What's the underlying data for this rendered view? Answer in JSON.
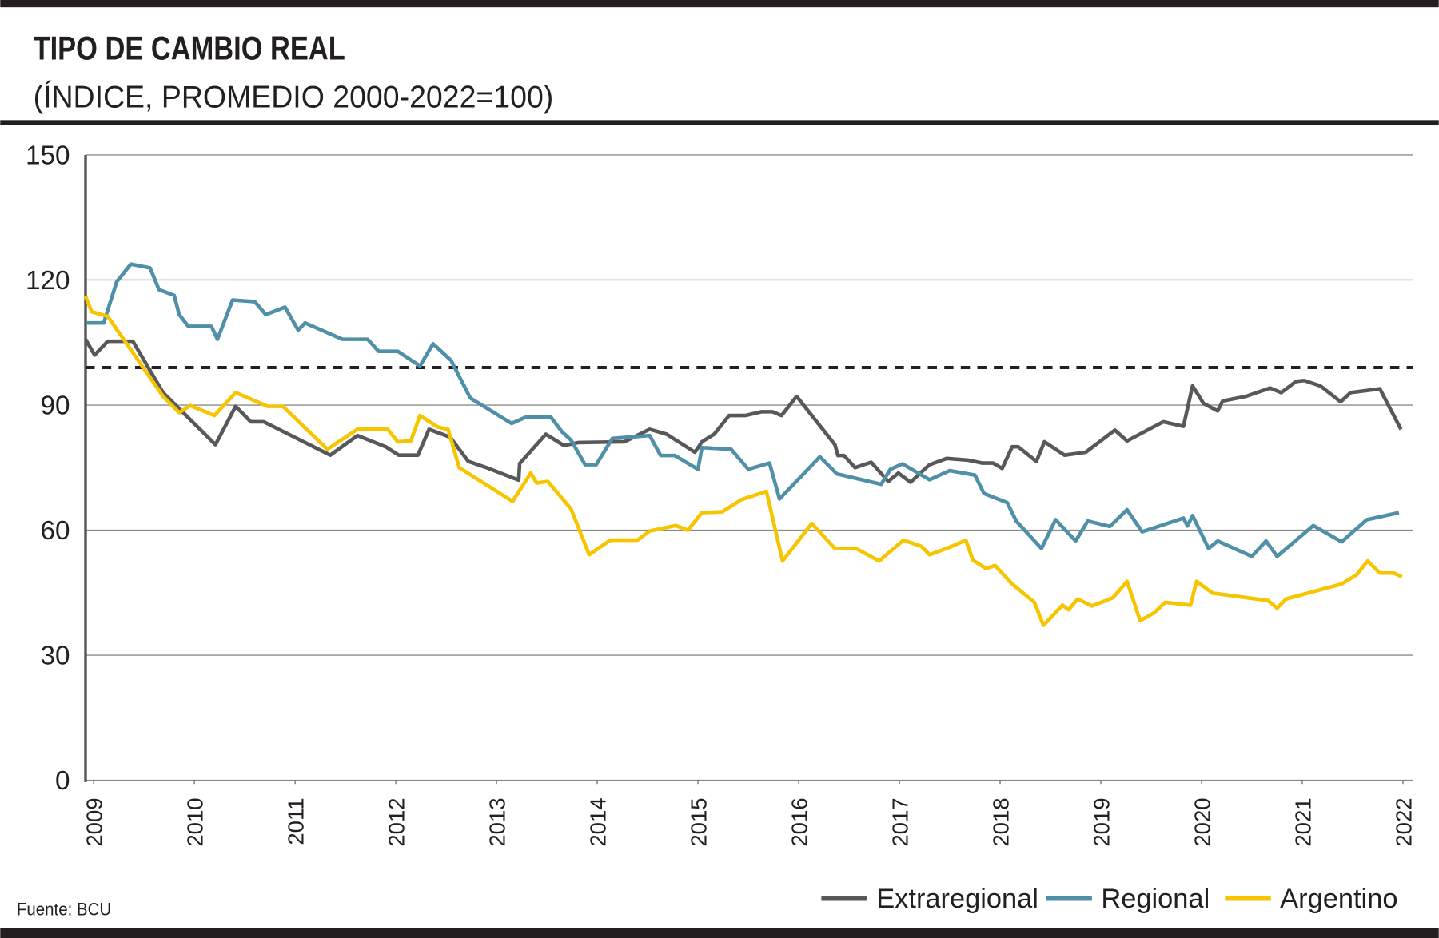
{
  "chart_data": {
    "type": "line",
    "title": "TIPO DE CAMBIO REAL",
    "subtitle": "(ÍNDICE, PROMEDIO 2000-2022=100)",
    "source": "Fuente: BCU",
    "xlim": [
      2008.92,
      2022.1
    ],
    "xticks": [
      2009,
      2010,
      2011,
      2012,
      2013,
      2014,
      2015,
      2016,
      2017,
      2018,
      2019,
      2020,
      2021,
      2022
    ],
    "ylim": [
      0,
      150
    ],
    "yticks": [
      0,
      30,
      60,
      90,
      120,
      150
    ],
    "grid": true,
    "reference_line": 99,
    "legend": "bottom-right",
    "series": [
      {
        "name": "Extraregional",
        "color": "#58585a",
        "x": [
          2008.92,
          2009.01,
          2009.14,
          2009.39,
          2009.69,
          2010.21,
          2010.41,
          2010.56,
          2010.69,
          2011.35,
          2011.62,
          2011.9,
          2012.03,
          2012.22,
          2012.33,
          2012.54,
          2012.72,
          2012.9,
          2013.22,
          2013.23,
          2013.49,
          2013.67,
          2013.81,
          2014.27,
          2014.52,
          2014.69,
          2014.97,
          2015.04,
          2015.16,
          2015.31,
          2015.47,
          2015.63,
          2015.74,
          2015.83,
          2015.98,
          2016.36,
          2016.39,
          2016.45,
          2016.56,
          2016.72,
          2016.89,
          2016.99,
          2017.11,
          2017.3,
          2017.47,
          2017.68,
          2017.82,
          2017.93,
          2018.02,
          2018.12,
          2018.18,
          2018.36,
          2018.44,
          2018.64,
          2018.85,
          2019.14,
          2019.26,
          2019.62,
          2019.82,
          2019.91,
          2020.02,
          2020.16,
          2020.21,
          2020.44,
          2020.68,
          2020.79,
          2020.94,
          2021.02,
          2021.18,
          2021.38,
          2021.48,
          2021.77,
          2021.98
        ],
        "values": [
          105.8,
          102,
          105.3,
          105.3,
          93,
          80.5,
          89.7,
          86,
          86,
          78,
          82.7,
          80,
          78,
          78,
          84.2,
          82.3,
          76.5,
          75,
          72,
          76,
          83,
          80.3,
          81,
          81.2,
          84.2,
          83,
          78.7,
          81.2,
          83,
          87.5,
          87.5,
          88.4,
          88.4,
          87.5,
          92.1,
          80.5,
          77.9,
          77.9,
          75,
          76.3,
          71.7,
          73.7,
          71.5,
          75.7,
          77.2,
          76.8,
          76.1,
          76.1,
          74.8,
          80,
          80,
          76.5,
          81.2,
          78,
          78.7,
          84,
          81.4,
          86,
          84.9,
          94.6,
          90.4,
          88.6,
          91,
          92.1,
          94.1,
          93,
          95.7,
          95.9,
          94.6,
          90.8,
          93,
          93.9,
          84.2
        ]
      },
      {
        "name": "Regional",
        "color": "#4f8fa8",
        "x": [
          2008.92,
          2009.1,
          2009.23,
          2009.37,
          2009.56,
          2009.65,
          2009.8,
          2009.85,
          2009.94,
          2010.17,
          2010.23,
          2010.38,
          2010.6,
          2010.71,
          2010.9,
          2011.03,
          2011.1,
          2011.47,
          2011.72,
          2011.83,
          2012.02,
          2012.24,
          2012.37,
          2012.55,
          2012.74,
          2013.15,
          2013.29,
          2013.54,
          2013.65,
          2013.74,
          2013.88,
          2013.99,
          2014.15,
          2014.31,
          2014.52,
          2014.63,
          2014.77,
          2015.0,
          2015.04,
          2015.33,
          2015.5,
          2015.71,
          2015.81,
          2016.21,
          2016.38,
          2016.82,
          2016.91,
          2017.03,
          2017.3,
          2017.5,
          2017.75,
          2017.84,
          2018.07,
          2018.16,
          2018.41,
          2018.55,
          2018.75,
          2018.87,
          2019.09,
          2019.26,
          2019.41,
          2019.82,
          2019.86,
          2019.91,
          2020.07,
          2020.16,
          2020.5,
          2020.64,
          2020.75,
          2021.11,
          2021.39,
          2021.64,
          2021.96
        ],
        "values": [
          109.7,
          109.7,
          119.6,
          123.8,
          122.9,
          117.7,
          116.3,
          111.7,
          108.9,
          108.9,
          105.8,
          115.2,
          114.8,
          111.7,
          113.5,
          108,
          109.7,
          105.8,
          105.8,
          102.9,
          102.9,
          99.4,
          104.7,
          100.7,
          91.7,
          85.6,
          87.1,
          87.1,
          83.6,
          81.6,
          75.7,
          75.7,
          82,
          82.3,
          82.7,
          77.9,
          77.9,
          74.6,
          79.8,
          79.4,
          74.6,
          76.1,
          67.5,
          77.6,
          73.5,
          71,
          74.6,
          75.9,
          72.1,
          74.3,
          73.2,
          68.8,
          66.6,
          62.2,
          55.6,
          62.5,
          57.4,
          62.2,
          60.9,
          64.9,
          59.6,
          62.9,
          61,
          63.5,
          55.6,
          57.4,
          53.7,
          57.4,
          53.7,
          61.1,
          57.2,
          62.5,
          64.2
        ]
      },
      {
        "name": "Argentino",
        "color": "#f7c400",
        "x": [
          2008.92,
          2008.98,
          2009.14,
          2009.69,
          2009.85,
          2009.96,
          2010.2,
          2010.41,
          2010.73,
          2010.88,
          2011.32,
          2011.62,
          2011.92,
          2012.02,
          2012.15,
          2012.24,
          2012.42,
          2012.52,
          2012.63,
          2013.16,
          2013.34,
          2013.4,
          2013.51,
          2013.74,
          2013.92,
          2014.13,
          2014.4,
          2014.52,
          2014.78,
          2014.9,
          2015.04,
          2015.24,
          2015.43,
          2015.68,
          2015.84,
          2016.13,
          2016.36,
          2016.57,
          2016.8,
          2017.04,
          2017.22,
          2017.3,
          2017.5,
          2017.66,
          2017.73,
          2017.86,
          2017.95,
          2018.12,
          2018.34,
          2018.43,
          2018.62,
          2018.68,
          2018.77,
          2018.91,
          2019.12,
          2019.26,
          2019.39,
          2019.53,
          2019.64,
          2019.89,
          2019.95,
          2020.11,
          2020.66,
          2020.75,
          2020.84,
          2021.39,
          2021.54,
          2021.65,
          2021.77,
          2021.91,
          2021.99
        ],
        "values": [
          116.1,
          112.4,
          111.3,
          92.1,
          88.2,
          89.9,
          87.5,
          93,
          89.7,
          89.7,
          79.4,
          84.2,
          84.2,
          81.2,
          81.4,
          87.5,
          84.7,
          84.2,
          75,
          66.9,
          73.7,
          71.3,
          71.7,
          65.1,
          54.1,
          57.6,
          57.6,
          59.8,
          61.1,
          60,
          64.2,
          64.4,
          67.3,
          69.3,
          52.6,
          61.6,
          55.6,
          55.6,
          52.6,
          57.6,
          56.1,
          54.1,
          55.9,
          57.6,
          52.8,
          50.8,
          51.5,
          47.1,
          42.7,
          37.2,
          42,
          40.9,
          43.5,
          41.8,
          43.8,
          47.7,
          38.3,
          40.2,
          42.7,
          42,
          47.7,
          44.9,
          43.1,
          41.3,
          43.5,
          47.1,
          49.3,
          52.6,
          49.7,
          49.7,
          48.8
        ]
      }
    ]
  }
}
